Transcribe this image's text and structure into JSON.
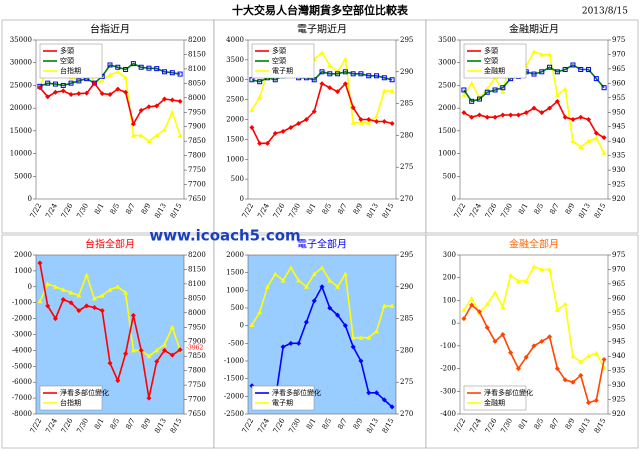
{
  "title": "十大交易人台灣期貨多空部位比較表",
  "date": "2013/8/15",
  "watermark": "www.icoach5.com",
  "chart_data": [
    {
      "type": "line",
      "title": "台指近月",
      "title_color": "#000000",
      "background": "#ffffff",
      "legend": "upper left",
      "categories": [
        "7/22",
        null,
        "7/24",
        null,
        "7/26",
        null,
        "7/30",
        null,
        "8/1",
        null,
        "8/5",
        null,
        "8/7",
        null,
        "8/9",
        null,
        "8/13",
        null,
        "8/15"
      ],
      "ylim": [
        0,
        35000
      ],
      "yticks": [
        0,
        5000,
        10000,
        15000,
        20000,
        25000,
        30000,
        35000
      ],
      "y2lim": [
        7650,
        8200
      ],
      "y2ticks": [
        7650,
        7700,
        7750,
        7800,
        7850,
        7900,
        7950,
        8000,
        8050,
        8100,
        8150,
        8200
      ],
      "series": [
        {
          "name": "多頭",
          "color": "#ff0000",
          "marker_color": "#ff0000",
          "values": [
            24500,
            22500,
            23500,
            23800,
            23000,
            23200,
            23300,
            25500,
            23200,
            23000,
            24200,
            23500,
            16500,
            19500,
            20300,
            20500,
            22000,
            21800,
            21500
          ]
        },
        {
          "name": "空頭",
          "color": "#008000",
          "marker_color": "#0000ff",
          "values": [
            24800,
            25500,
            25300,
            25000,
            25500,
            26000,
            26500,
            25500,
            27000,
            29500,
            29000,
            28500,
            29800,
            29000,
            28800,
            28700,
            28000,
            27800,
            27500
          ]
        },
        {
          "name": "台指期",
          "color": "#ffff00",
          "marker_color": "#ffff00",
          "axis": "y2",
          "values": [
            8040,
            8100,
            8090,
            8080,
            8070,
            8060,
            8130,
            8050,
            8060,
            8080,
            8090,
            8070,
            7870,
            7870,
            7850,
            7870,
            7890,
            7950,
            7870
          ]
        }
      ]
    },
    {
      "type": "line",
      "title": "電子期近月",
      "title_color": "#000000",
      "background": "#ffffff",
      "legend": "upper left",
      "categories": [
        "7/22",
        null,
        "7/24",
        null,
        "7/26",
        null,
        "7/30",
        null,
        "8/1",
        null,
        "8/5",
        null,
        "8/7",
        null,
        "8/9",
        null,
        "8/13",
        null,
        "8/15"
      ],
      "ylim": [
        0,
        4000
      ],
      "yticks": [
        0,
        500,
        1000,
        1500,
        2000,
        2500,
        3000,
        3500,
        4000
      ],
      "y2lim": [
        270,
        295
      ],
      "y2ticks": [
        270,
        275,
        280,
        285,
        290,
        295
      ],
      "series": [
        {
          "name": "多頭",
          "color": "#ff0000",
          "marker_color": "#ff0000",
          "values": [
            1800,
            1400,
            1400,
            1650,
            1700,
            1800,
            1900,
            2000,
            2200,
            2900,
            2800,
            2700,
            2900,
            2300,
            2000,
            2000,
            1950,
            1950,
            1900
          ]
        },
        {
          "name": "空頭",
          "color": "#008000",
          "marker_color": "#0000ff",
          "values": [
            3000,
            2950,
            3050,
            3000,
            3100,
            3200,
            3050,
            3050,
            3000,
            3200,
            3150,
            3150,
            3200,
            3150,
            3150,
            3100,
            3100,
            3050,
            3000
          ]
        },
        {
          "name": "電子期",
          "color": "#ffff00",
          "marker_color": "#ffff00",
          "axis": "y2",
          "values": [
            284,
            286,
            290,
            292,
            291,
            293,
            291,
            290,
            292,
            293,
            291,
            290,
            292,
            282,
            282,
            282,
            283,
            287,
            287
          ]
        }
      ]
    },
    {
      "type": "line",
      "title": "金融期近月",
      "title_color": "#000000",
      "background": "#ffffff",
      "legend": "upper left",
      "categories": [
        "7/22",
        null,
        "7/24",
        null,
        "7/26",
        null,
        "7/30",
        null,
        "8/1",
        null,
        "8/5",
        null,
        "8/7",
        null,
        "8/9",
        null,
        "8/13",
        null,
        "8/15"
      ],
      "ylim": [
        0,
        3500
      ],
      "yticks": [
        0,
        500,
        1000,
        1500,
        2000,
        2500,
        3000,
        3500
      ],
      "y2lim": [
        920,
        975
      ],
      "y2ticks": [
        920,
        925,
        930,
        935,
        940,
        945,
        950,
        955,
        960,
        965,
        970,
        975
      ],
      "series": [
        {
          "name": "多頭",
          "color": "#ff0000",
          "marker_color": "#ff0000",
          "values": [
            1900,
            1800,
            1850,
            1800,
            1800,
            1850,
            1850,
            1850,
            1900,
            2000,
            1900,
            2000,
            2150,
            1800,
            1750,
            1800,
            1750,
            1450,
            1350
          ]
        },
        {
          "name": "空頭",
          "color": "#008000",
          "marker_color": "#0000ff",
          "values": [
            2400,
            2150,
            2200,
            2350,
            2400,
            2450,
            2650,
            2700,
            2800,
            2750,
            2800,
            2900,
            2800,
            2850,
            2950,
            2850,
            2850,
            2650,
            2450
          ]
        },
        {
          "name": "金融期",
          "color": "#ffff00",
          "marker_color": "#ffff00",
          "axis": "y2",
          "values": [
            956,
            960,
            955,
            958,
            962,
            957,
            968,
            966,
            966,
            971,
            970,
            970,
            956,
            958,
            940,
            938,
            940,
            941,
            936
          ]
        }
      ]
    },
    {
      "type": "line",
      "title": "台指全部月",
      "title_color": "#ff0000",
      "background": "#99ccff",
      "legend": "lower left",
      "categories": [
        "7/22",
        null,
        "7/24",
        null,
        "7/26",
        null,
        "7/30",
        null,
        "8/1",
        null,
        "8/5",
        null,
        "8/7",
        null,
        "8/9",
        null,
        "8/13",
        null,
        "8/15"
      ],
      "ylim": [
        -8000,
        2000
      ],
      "yticks": [
        -8000,
        -7000,
        -6000,
        -5000,
        -4000,
        -3000,
        -2000,
        -1000,
        0,
        1000,
        2000
      ],
      "y2lim": [
        7650,
        8200
      ],
      "y2ticks": [
        7650,
        7700,
        7750,
        7800,
        7850,
        7900,
        7950,
        8000,
        8050,
        8100,
        8150,
        8200
      ],
      "series": [
        {
          "name": "淨看多部位變化",
          "color": "#ff0000",
          "marker_color": "#ff0000",
          "values": [
            1500,
            -1200,
            -2000,
            -800,
            -1000,
            -1500,
            -1200,
            -1300,
            -1500,
            -4800,
            -5900,
            -4200,
            -1800,
            -4000,
            -7000,
            -4700,
            -4000,
            -4300,
            -3962
          ],
          "value_labels": [
            null,
            null,
            null,
            null,
            null,
            null,
            null,
            null,
            null,
            null,
            null,
            null,
            null,
            null,
            null,
            null,
            null,
            null,
            "-3962"
          ]
        },
        {
          "name": "台指期",
          "color": "#ffff00",
          "marker_color": "#ffff00",
          "axis": "y2",
          "values": [
            8040,
            8100,
            8090,
            8080,
            8070,
            8060,
            8130,
            8050,
            8060,
            8080,
            8090,
            8070,
            7870,
            7870,
            7850,
            7870,
            7890,
            7950,
            7870
          ]
        }
      ]
    },
    {
      "type": "line",
      "title": "電子全部月",
      "title_color": "#0000ff",
      "background": "#99ccff",
      "legend": "lower left",
      "categories": [
        "7/22",
        null,
        "7/24",
        null,
        "7/26",
        null,
        "7/30",
        null,
        "8/1",
        null,
        "8/5",
        null,
        "8/7",
        null,
        "8/9",
        null,
        "8/13",
        null,
        "8/15"
      ],
      "ylim": [
        -2500,
        2000
      ],
      "yticks": [
        -2500,
        -2000,
        -1500,
        -1000,
        -500,
        0,
        500,
        1000,
        1500,
        2000
      ],
      "y2lim": [
        270,
        295
      ],
      "y2ticks": [
        270,
        275,
        280,
        285,
        290,
        295
      ],
      "series": [
        {
          "name": "淨看多部位變化",
          "color": "#0000ff",
          "marker_color": "#0000ff",
          "values": [
            -1700,
            -2200,
            -2000,
            -2100,
            -600,
            -500,
            -500,
            100,
            700,
            1100,
            500,
            300,
            0,
            -600,
            -1000,
            -1900,
            -1900,
            -2100,
            -2300
          ]
        },
        {
          "name": "電子期",
          "color": "#ffff00",
          "marker_color": "#ffff00",
          "axis": "y2",
          "values": [
            284,
            286,
            290,
            292,
            291,
            293,
            291,
            290,
            292,
            293,
            291,
            290,
            292,
            282,
            282,
            282,
            283,
            287,
            287
          ]
        }
      ]
    },
    {
      "type": "line",
      "title": "金融全部月",
      "title_color": "#ff6600",
      "background": "#ffffff",
      "legend": "lower left",
      "categories": [
        "7/22",
        null,
        "7/24",
        null,
        "7/26",
        null,
        "7/30",
        null,
        "8/1",
        null,
        "8/5",
        null,
        "8/7",
        null,
        "8/9",
        null,
        "8/13",
        null,
        "8/15"
      ],
      "ylim": [
        -400,
        300
      ],
      "yticks": [
        -400,
        -300,
        -200,
        -100,
        0,
        100,
        200,
        300
      ],
      "y2lim": [
        920,
        975
      ],
      "y2ticks": [
        920,
        925,
        930,
        935,
        940,
        945,
        950,
        955,
        960,
        965,
        970,
        975
      ],
      "series": [
        {
          "name": "淨看多部位變化",
          "color": "#ff4500",
          "marker_color": "#ff4500",
          "values": [
            20,
            80,
            50,
            -20,
            -80,
            -50,
            -130,
            -200,
            -150,
            -100,
            -80,
            -60,
            -200,
            -250,
            -260,
            -230,
            -350,
            -340,
            -160
          ]
        },
        {
          "name": "金融期",
          "color": "#ffff00",
          "marker_color": "#ffff00",
          "axis": "y2",
          "values": [
            956,
            960,
            955,
            958,
            962,
            957,
            968,
            966,
            966,
            971,
            970,
            970,
            956,
            958,
            940,
            938,
            940,
            941,
            936
          ]
        }
      ]
    }
  ]
}
